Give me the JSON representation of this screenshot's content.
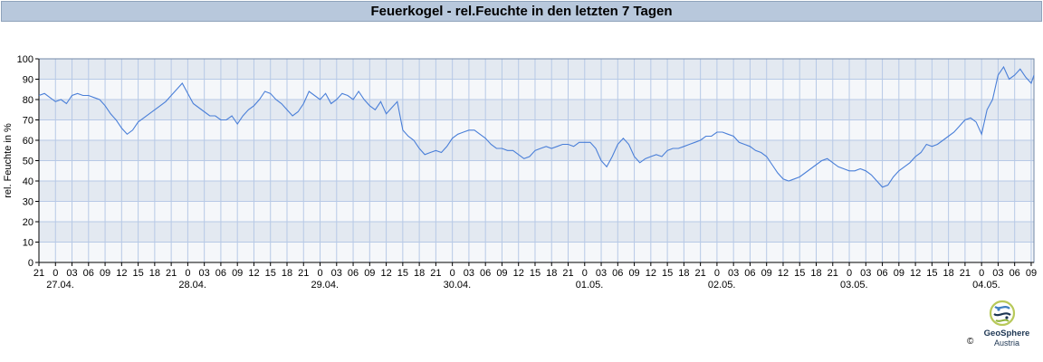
{
  "title": "Feuerkogel - rel.Feuchte in den letzten 7 Tagen",
  "colors": {
    "line": "#4a7fd8",
    "band_dark": "#e3e9f1",
    "band_light": "#f5f7fa",
    "grid": "#b7c9e6",
    "title_bg": "#b8c8dc"
  },
  "logo": {
    "copyright": "©",
    "name": "GeoSphere",
    "sub": "Austria",
    "icon": "geosphere-logo-icon"
  },
  "chart_data": {
    "type": "line",
    "title": "Feuerkogel - rel.Feuchte in den letzten 7 Tagen",
    "ylabel": "rel. Feuchte in %",
    "xlabel": "",
    "ylim": [
      0,
      100
    ],
    "yticks": [
      0,
      10,
      20,
      30,
      40,
      50,
      60,
      70,
      80,
      90,
      100
    ],
    "grid": true,
    "hour_ticks": [
      "21",
      "0",
      "03",
      "06",
      "09",
      "12",
      "15",
      "18",
      "21",
      "0",
      "03",
      "06",
      "09",
      "12",
      "15",
      "18",
      "21",
      "0",
      "03",
      "06",
      "09",
      "12",
      "15",
      "18",
      "21",
      "0",
      "03",
      "06",
      "09",
      "12",
      "15",
      "18",
      "21",
      "0",
      "03",
      "06",
      "09",
      "12",
      "15",
      "18",
      "21",
      "0",
      "03",
      "06",
      "09",
      "12",
      "15",
      "18",
      "21",
      "0",
      "03",
      "06",
      "09",
      "12",
      "15",
      "18",
      "21",
      "0",
      "03",
      "06",
      "09"
    ],
    "date_labels": [
      "27.04.",
      "28.04.",
      "29.04.",
      "30.04.",
      "01.05.",
      "02.05.",
      "03.05.",
      "04.05."
    ],
    "x_start": "2025-04-26 21:00",
    "x_end": "2025-05-04 09:30",
    "series": [
      {
        "values": [
          [
            "2025-04-26 21:00",
            82
          ],
          [
            "2025-04-26 22:00",
            83
          ],
          [
            "2025-04-26 23:00",
            81
          ],
          [
            "2025-04-27 00:00",
            79
          ],
          [
            "2025-04-27 01:00",
            80
          ],
          [
            "2025-04-27 02:00",
            78
          ],
          [
            "2025-04-27 03:00",
            82
          ],
          [
            "2025-04-27 04:00",
            83
          ],
          [
            "2025-04-27 05:00",
            82
          ],
          [
            "2025-04-27 06:00",
            82
          ],
          [
            "2025-04-27 07:00",
            81
          ],
          [
            "2025-04-27 08:00",
            80
          ],
          [
            "2025-04-27 09:00",
            77
          ],
          [
            "2025-04-27 10:00",
            73
          ],
          [
            "2025-04-27 11:00",
            70
          ],
          [
            "2025-04-27 12:00",
            66
          ],
          [
            "2025-04-27 13:00",
            63
          ],
          [
            "2025-04-27 14:00",
            65
          ],
          [
            "2025-04-27 15:00",
            69
          ],
          [
            "2025-04-27 16:00",
            71
          ],
          [
            "2025-04-27 17:00",
            73
          ],
          [
            "2025-04-27 18:00",
            75
          ],
          [
            "2025-04-27 19:00",
            77
          ],
          [
            "2025-04-27 20:00",
            79
          ],
          [
            "2025-04-27 21:00",
            82
          ],
          [
            "2025-04-27 22:00",
            85
          ],
          [
            "2025-04-27 23:00",
            88
          ],
          [
            "2025-04-28 00:00",
            83
          ],
          [
            "2025-04-28 01:00",
            78
          ],
          [
            "2025-04-28 02:00",
            76
          ],
          [
            "2025-04-28 03:00",
            74
          ],
          [
            "2025-04-28 04:00",
            72
          ],
          [
            "2025-04-28 05:00",
            72
          ],
          [
            "2025-04-28 06:00",
            70
          ],
          [
            "2025-04-28 07:00",
            70
          ],
          [
            "2025-04-28 08:00",
            72
          ],
          [
            "2025-04-28 09:00",
            68
          ],
          [
            "2025-04-28 10:00",
            72
          ],
          [
            "2025-04-28 11:00",
            75
          ],
          [
            "2025-04-28 12:00",
            77
          ],
          [
            "2025-04-28 13:00",
            80
          ],
          [
            "2025-04-28 14:00",
            84
          ],
          [
            "2025-04-28 15:00",
            83
          ],
          [
            "2025-04-28 16:00",
            80
          ],
          [
            "2025-04-28 17:00",
            78
          ],
          [
            "2025-04-28 18:00",
            75
          ],
          [
            "2025-04-28 19:00",
            72
          ],
          [
            "2025-04-28 20:00",
            74
          ],
          [
            "2025-04-28 21:00",
            78
          ],
          [
            "2025-04-28 22:00",
            84
          ],
          [
            "2025-04-28 23:00",
            82
          ],
          [
            "2025-04-29 00:00",
            80
          ],
          [
            "2025-04-29 01:00",
            83
          ],
          [
            "2025-04-29 02:00",
            78
          ],
          [
            "2025-04-29 03:00",
            80
          ],
          [
            "2025-04-29 04:00",
            83
          ],
          [
            "2025-04-29 05:00",
            82
          ],
          [
            "2025-04-29 06:00",
            80
          ],
          [
            "2025-04-29 07:00",
            84
          ],
          [
            "2025-04-29 08:00",
            80
          ],
          [
            "2025-04-29 09:00",
            77
          ],
          [
            "2025-04-29 10:00",
            75
          ],
          [
            "2025-04-29 11:00",
            79
          ],
          [
            "2025-04-29 12:00",
            73
          ],
          [
            "2025-04-29 13:00",
            76
          ],
          [
            "2025-04-29 14:00",
            79
          ],
          [
            "2025-04-29 15:00",
            65
          ],
          [
            "2025-04-29 16:00",
            62
          ],
          [
            "2025-04-29 17:00",
            60
          ],
          [
            "2025-04-29 18:00",
            56
          ],
          [
            "2025-04-29 19:00",
            53
          ],
          [
            "2025-04-29 20:00",
            54
          ],
          [
            "2025-04-29 21:00",
            55
          ],
          [
            "2025-04-29 22:00",
            54
          ],
          [
            "2025-04-29 23:00",
            57
          ],
          [
            "2025-04-30 00:00",
            61
          ],
          [
            "2025-04-30 01:00",
            63
          ],
          [
            "2025-04-30 02:00",
            64
          ],
          [
            "2025-04-30 03:00",
            65
          ],
          [
            "2025-04-30 04:00",
            65
          ],
          [
            "2025-04-30 05:00",
            63
          ],
          [
            "2025-04-30 06:00",
            61
          ],
          [
            "2025-04-30 07:00",
            58
          ],
          [
            "2025-04-30 08:00",
            56
          ],
          [
            "2025-04-30 09:00",
            56
          ],
          [
            "2025-04-30 10:00",
            55
          ],
          [
            "2025-04-30 11:00",
            55
          ],
          [
            "2025-04-30 12:00",
            53
          ],
          [
            "2025-04-30 13:00",
            51
          ],
          [
            "2025-04-30 14:00",
            52
          ],
          [
            "2025-04-30 15:00",
            55
          ],
          [
            "2025-04-30 16:00",
            56
          ],
          [
            "2025-04-30 17:00",
            57
          ],
          [
            "2025-04-30 18:00",
            56
          ],
          [
            "2025-04-30 19:00",
            57
          ],
          [
            "2025-04-30 20:00",
            58
          ],
          [
            "2025-04-30 21:00",
            58
          ],
          [
            "2025-04-30 22:00",
            57
          ],
          [
            "2025-04-30 23:00",
            59
          ],
          [
            "2025-05-01 00:00",
            59
          ],
          [
            "2025-05-01 01:00",
            59
          ],
          [
            "2025-05-01 02:00",
            56
          ],
          [
            "2025-05-01 03:00",
            50
          ],
          [
            "2025-05-01 04:00",
            47
          ],
          [
            "2025-05-01 05:00",
            52
          ],
          [
            "2025-05-01 06:00",
            58
          ],
          [
            "2025-05-01 07:00",
            61
          ],
          [
            "2025-05-01 08:00",
            58
          ],
          [
            "2025-05-01 09:00",
            52
          ],
          [
            "2025-05-01 10:00",
            49
          ],
          [
            "2025-05-01 11:00",
            51
          ],
          [
            "2025-05-01 12:00",
            52
          ],
          [
            "2025-05-01 13:00",
            53
          ],
          [
            "2025-05-01 14:00",
            52
          ],
          [
            "2025-05-01 15:00",
            55
          ],
          [
            "2025-05-01 16:00",
            56
          ],
          [
            "2025-05-01 17:00",
            56
          ],
          [
            "2025-05-01 18:00",
            57
          ],
          [
            "2025-05-01 19:00",
            58
          ],
          [
            "2025-05-01 20:00",
            59
          ],
          [
            "2025-05-01 21:00",
            60
          ],
          [
            "2025-05-01 22:00",
            62
          ],
          [
            "2025-05-01 23:00",
            62
          ],
          [
            "2025-05-02 00:00",
            64
          ],
          [
            "2025-05-02 01:00",
            64
          ],
          [
            "2025-05-02 02:00",
            63
          ],
          [
            "2025-05-02 03:00",
            62
          ],
          [
            "2025-05-02 04:00",
            59
          ],
          [
            "2025-05-02 05:00",
            58
          ],
          [
            "2025-05-02 06:00",
            57
          ],
          [
            "2025-05-02 07:00",
            55
          ],
          [
            "2025-05-02 08:00",
            54
          ],
          [
            "2025-05-02 09:00",
            52
          ],
          [
            "2025-05-02 10:00",
            48
          ],
          [
            "2025-05-02 11:00",
            44
          ],
          [
            "2025-05-02 12:00",
            41
          ],
          [
            "2025-05-02 13:00",
            40
          ],
          [
            "2025-05-02 14:00",
            41
          ],
          [
            "2025-05-02 15:00",
            42
          ],
          [
            "2025-05-02 16:00",
            44
          ],
          [
            "2025-05-02 17:00",
            46
          ],
          [
            "2025-05-02 18:00",
            48
          ],
          [
            "2025-05-02 19:00",
            50
          ],
          [
            "2025-05-02 20:00",
            51
          ],
          [
            "2025-05-02 21:00",
            49
          ],
          [
            "2025-05-02 22:00",
            47
          ],
          [
            "2025-05-02 23:00",
            46
          ],
          [
            "2025-05-03 00:00",
            45
          ],
          [
            "2025-05-03 01:00",
            45
          ],
          [
            "2025-05-03 02:00",
            46
          ],
          [
            "2025-05-03 03:00",
            45
          ],
          [
            "2025-05-03 04:00",
            43
          ],
          [
            "2025-05-03 05:00",
            40
          ],
          [
            "2025-05-03 06:00",
            37
          ],
          [
            "2025-05-03 07:00",
            38
          ],
          [
            "2025-05-03 08:00",
            42
          ],
          [
            "2025-05-03 09:00",
            45
          ],
          [
            "2025-05-03 10:00",
            47
          ],
          [
            "2025-05-03 11:00",
            49
          ],
          [
            "2025-05-03 12:00",
            52
          ],
          [
            "2025-05-03 13:00",
            54
          ],
          [
            "2025-05-03 14:00",
            58
          ],
          [
            "2025-05-03 15:00",
            57
          ],
          [
            "2025-05-03 16:00",
            58
          ],
          [
            "2025-05-03 17:00",
            60
          ],
          [
            "2025-05-03 18:00",
            62
          ],
          [
            "2025-05-03 19:00",
            64
          ],
          [
            "2025-05-03 20:00",
            67
          ],
          [
            "2025-05-03 21:00",
            70
          ],
          [
            "2025-05-03 22:00",
            71
          ],
          [
            "2025-05-03 23:00",
            69
          ],
          [
            "2025-05-04 00:00",
            63
          ],
          [
            "2025-05-04 01:00",
            75
          ],
          [
            "2025-05-04 02:00",
            80
          ],
          [
            "2025-05-04 03:00",
            92
          ],
          [
            "2025-05-04 04:00",
            96
          ],
          [
            "2025-05-04 05:00",
            90
          ],
          [
            "2025-05-04 06:00",
            92
          ],
          [
            "2025-05-04 07:00",
            95
          ],
          [
            "2025-05-04 08:00",
            91
          ],
          [
            "2025-05-04 09:00",
            88
          ],
          [
            "2025-05-04 09:30",
            92
          ]
        ]
      }
    ]
  }
}
